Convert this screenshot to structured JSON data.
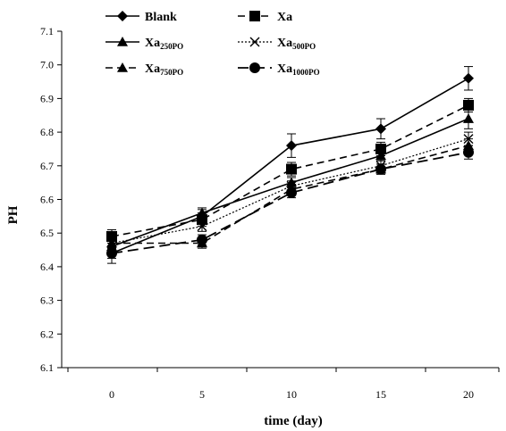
{
  "chart_data": {
    "type": "line",
    "title": "",
    "xlabel": "time (day)",
    "ylabel": "PH",
    "x": [
      0,
      5,
      10,
      15,
      20
    ],
    "xticks": [
      "0",
      "5",
      "10",
      "15",
      "20"
    ],
    "ylim": [
      6.1,
      7.1
    ],
    "yticks": [
      "6.1",
      "6.2",
      "6.3",
      "6.4",
      "6.5",
      "6.6",
      "6.7",
      "6.8",
      "6.9",
      "7.0",
      "7.1"
    ],
    "grid": false,
    "legend_placement": "top",
    "error_bars": true,
    "series": [
      {
        "name": "Blank",
        "name_main": "Blank",
        "name_sub": "",
        "values": [
          6.44,
          6.55,
          6.76,
          6.81,
          6.96
        ],
        "error": [
          0.03,
          0.02,
          0.035,
          0.03,
          0.035
        ],
        "marker": "diamond",
        "dash": "solid",
        "width": 1.6
      },
      {
        "name": "Xa",
        "name_main": "Xa",
        "name_sub": "",
        "values": [
          6.49,
          6.54,
          6.69,
          6.75,
          6.88
        ],
        "error": [
          0.02,
          0.02,
          0.02,
          0.02,
          0.02
        ],
        "marker": "square",
        "dash": "dashed",
        "width": 1.6
      },
      {
        "name": "Xa250PO",
        "name_main": "Xa",
        "name_sub": "250PO",
        "values": [
          6.46,
          6.56,
          6.65,
          6.73,
          6.84
        ],
        "error": [
          0.015,
          0.015,
          0.015,
          0.015,
          0.03
        ],
        "marker": "triangle",
        "dash": "solid",
        "width": 1.6
      },
      {
        "name": "Xa500PO",
        "name_main": "Xa",
        "name_sub": "500PO",
        "values": [
          6.47,
          6.52,
          6.64,
          6.7,
          6.78
        ],
        "error": [
          0.015,
          0.015,
          0.015,
          0.015,
          0.02
        ],
        "marker": "x",
        "dash": "dotted",
        "width": 1.2
      },
      {
        "name": "Xa750PO",
        "name_main": "Xa",
        "name_sub": "750PO",
        "values": [
          6.47,
          6.47,
          6.63,
          6.69,
          6.76
        ],
        "error": [
          0.015,
          0.015,
          0.015,
          0.015,
          0.02
        ],
        "marker": "triangle",
        "dash": "dashed",
        "width": 1.6
      },
      {
        "name": "Xa1000PO",
        "name_main": "Xa",
        "name_sub": "1000PO",
        "values": [
          6.44,
          6.48,
          6.62,
          6.69,
          6.74
        ],
        "error": [
          0.015,
          0.015,
          0.015,
          0.015,
          0.02
        ],
        "marker": "circle",
        "dash": "long-dashed",
        "width": 1.8
      }
    ]
  }
}
